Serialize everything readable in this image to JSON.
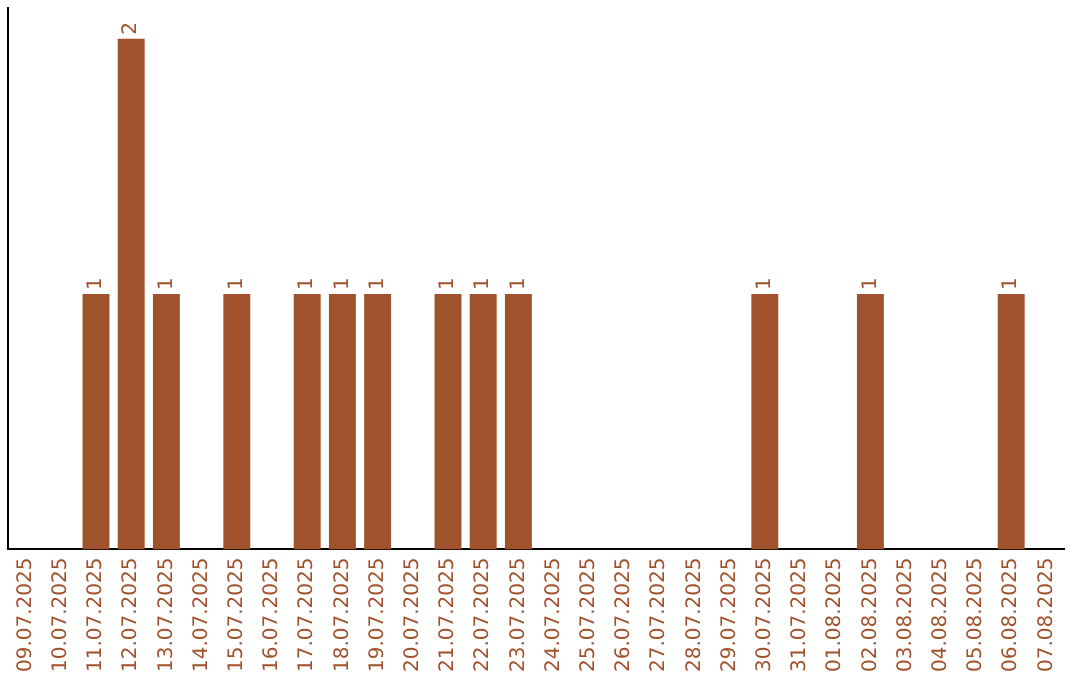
{
  "chart_data": {
    "type": "bar",
    "categories": [
      "09.07.2025",
      "10.07.2025",
      "11.07.2025",
      "12.07.2025",
      "13.07.2025",
      "14.07.2025",
      "15.07.2025",
      "16.07.2025",
      "17.07.2025",
      "18.07.2025",
      "19.07.2025",
      "20.07.2025",
      "21.07.2025",
      "22.07.2025",
      "23.07.2025",
      "24.07.2025",
      "25.07.2025",
      "26.07.2025",
      "27.07.2025",
      "28.07.2025",
      "29.07.2025",
      "30.07.2025",
      "31.07.2025",
      "01.08.2025",
      "02.08.2025",
      "03.08.2025",
      "04.08.2025",
      "05.08.2025",
      "06.08.2025",
      "07.08.2025"
    ],
    "values": [
      0,
      0,
      1,
      2,
      1,
      0,
      1,
      0,
      1,
      1,
      1,
      0,
      1,
      1,
      1,
      0,
      0,
      0,
      0,
      0,
      0,
      1,
      0,
      0,
      1,
      0,
      0,
      0,
      1,
      0
    ],
    "value_labels": [
      null,
      null,
      "1",
      "2",
      "1",
      null,
      "1",
      null,
      "1",
      "1",
      "1",
      null,
      "1",
      "1",
      "1",
      null,
      null,
      null,
      null,
      null,
      null,
      "1",
      null,
      null,
      "1",
      null,
      null,
      null,
      "1",
      null
    ],
    "color": "#a0522d",
    "tick_labels": "x",
    "grid": false,
    "legend": false
  }
}
